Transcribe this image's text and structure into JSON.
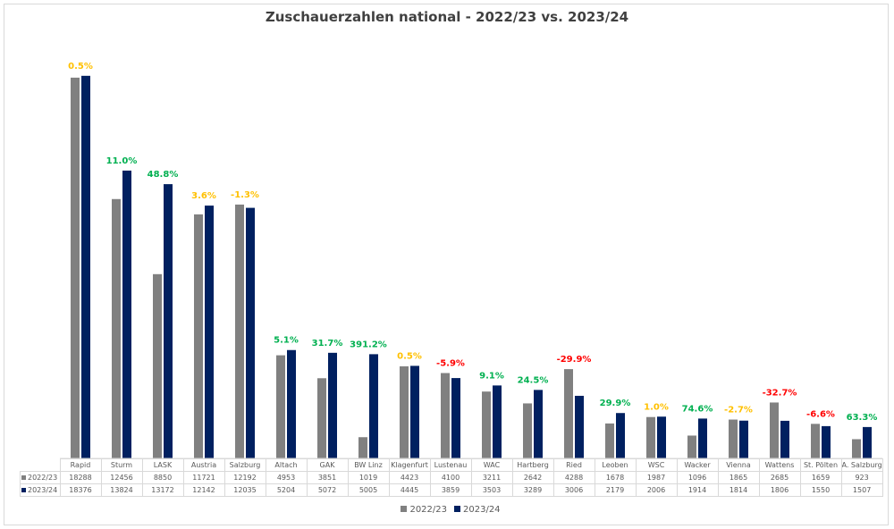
{
  "chart_data": {
    "type": "bar",
    "title": "Zuschauerzahlen national - 2022/23 vs. 2023/24",
    "categories": [
      "Rapid",
      "Sturm",
      "LASK",
      "Austria",
      "Salzburg",
      "Altach",
      "GAK",
      "BW Linz",
      "Klagenfurt",
      "Lustenau",
      "WAC",
      "Hartberg",
      "Ried",
      "Leoben",
      "WSC",
      "Wacker",
      "Vienna",
      "Wattens",
      "St. Pölten",
      "A. Salzburg"
    ],
    "series": [
      {
        "name": "2022/23",
        "color": "#808080",
        "values": [
          18288,
          12456,
          8850,
          11721,
          12192,
          4953,
          3851,
          1019,
          4423,
          4100,
          3211,
          2642,
          4288,
          1678,
          1987,
          1096,
          1865,
          2685,
          1659,
          923
        ]
      },
      {
        "name": "2023/24",
        "color": "#002060",
        "values": [
          18376,
          13824,
          13172,
          12142,
          12035,
          5204,
          5072,
          5005,
          4445,
          3859,
          3503,
          3289,
          3006,
          2179,
          2006,
          1914,
          1814,
          1806,
          1550,
          1507
        ]
      }
    ],
    "change_labels": [
      "0.5%",
      "11.0%",
      "48.8%",
      "3.6%",
      "-1.3%",
      "5.1%",
      "31.7%",
      "391.2%",
      "0.5%",
      "-5.9%",
      "9.1%",
      "24.5%",
      "-29.9%",
      "29.9%",
      "1.0%",
      "74.6%",
      "-2.7%",
      "-32.7%",
      "-6.6%",
      "63.3%"
    ],
    "change_colors": {
      "positive": "#00b050",
      "neutral": "#ffc000",
      "negative": "#ff0000"
    },
    "ylim": [
      0,
      20000
    ],
    "grid": false,
    "legend": "bottom",
    "xlabel": "",
    "ylabel": ""
  }
}
